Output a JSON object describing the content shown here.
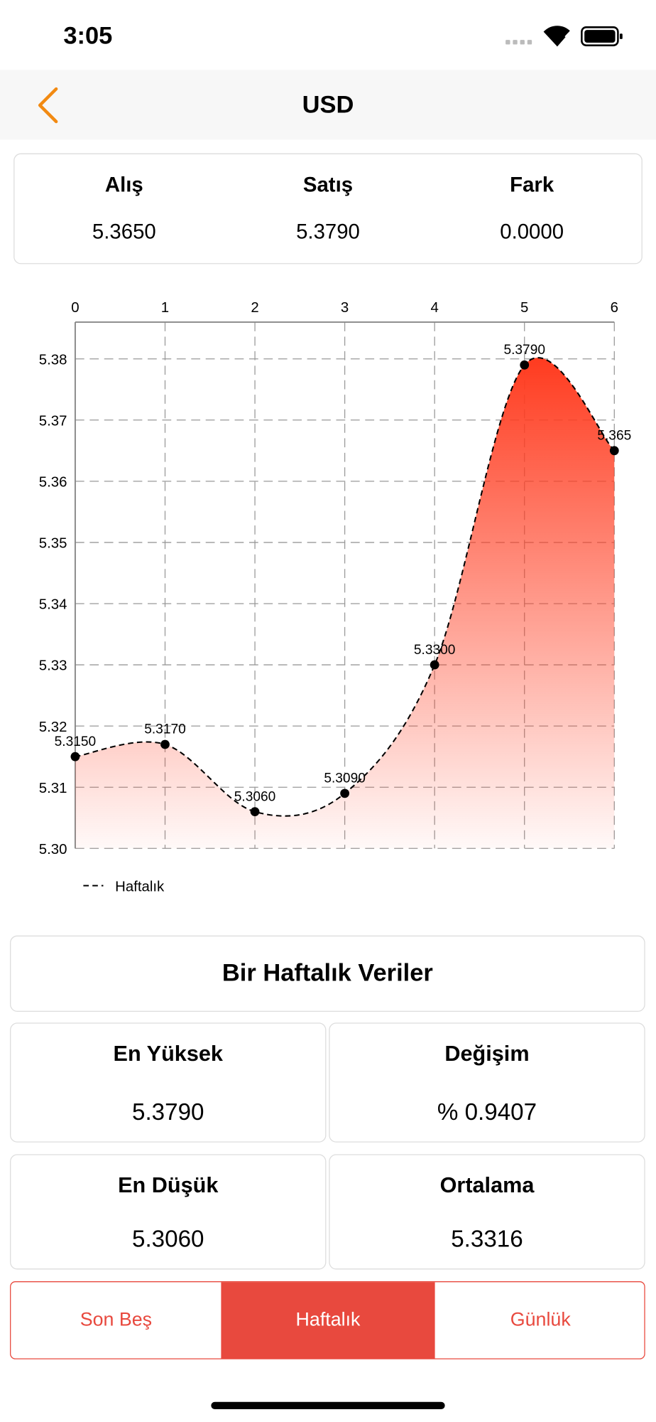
{
  "status_bar": {
    "time": "3:05"
  },
  "nav": {
    "title": "USD"
  },
  "summary": {
    "columns": [
      {
        "label": "Alış",
        "value": "5.3650"
      },
      {
        "label": "Satış",
        "value": "5.3790"
      },
      {
        "label": "Fark",
        "value": "0.0000"
      }
    ]
  },
  "chart_data": {
    "type": "line",
    "fill": true,
    "fill_color": "#ff3b1f",
    "grid": true,
    "x": [
      0,
      1,
      2,
      3,
      4,
      5,
      6
    ],
    "xlim": [
      0,
      6
    ],
    "xticks": [
      0,
      1,
      2,
      3,
      4,
      5,
      6
    ],
    "ylim": [
      5.3,
      5.386
    ],
    "yticks": [
      {
        "value": 5.3,
        "label": "5.30"
      },
      5.31,
      5.32,
      5.33,
      5.34,
      5.35,
      5.36,
      5.37,
      5.38
    ],
    "series": [
      {
        "name": "Haftalık",
        "color": "#000000",
        "values": [
          5.315,
          5.317,
          5.306,
          5.309,
          5.33,
          5.379,
          5.365
        ],
        "value_labels": [
          "5.3150",
          "5.3170",
          "5.3060",
          "5.3090",
          "5.3300",
          "5.3790",
          "5.365"
        ]
      }
    ]
  },
  "weekly": {
    "title": "Bir Haftalık Veriler",
    "stats": [
      {
        "label": "En Yüksek",
        "value": "5.3790"
      },
      {
        "label": "Değişim",
        "value": "% 0.9407"
      },
      {
        "label": "En Düşük",
        "value": "5.3060"
      },
      {
        "label": "Ortalama",
        "value": "5.3316"
      }
    ]
  },
  "tabs": {
    "items": [
      "Son Beş",
      "Haftalık",
      "Günlük"
    ],
    "selected": 1
  }
}
